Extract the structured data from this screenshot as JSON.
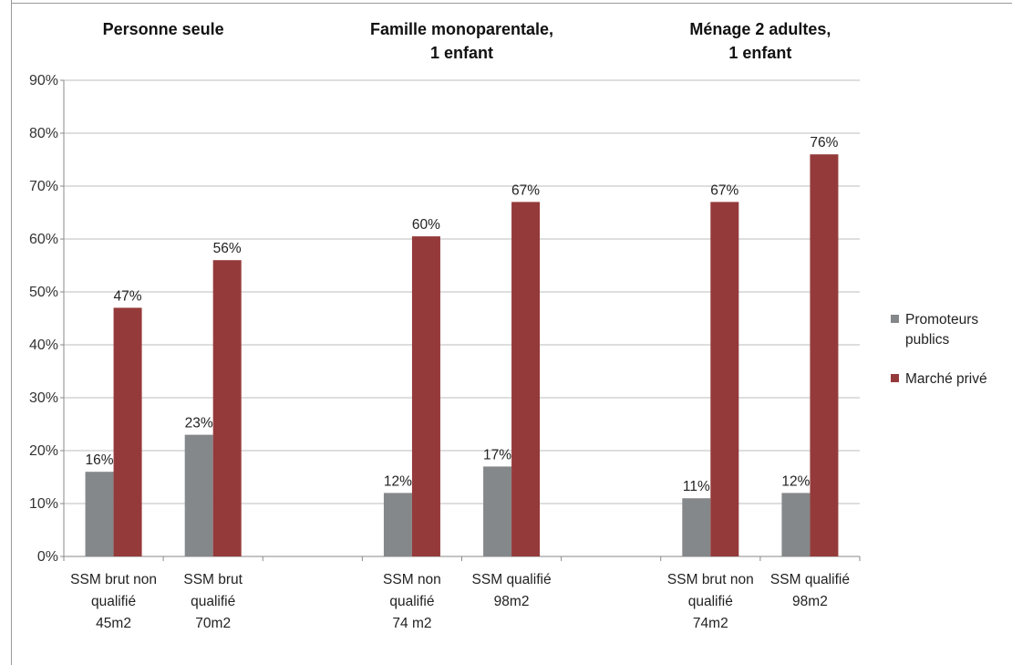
{
  "chart_data": {
    "type": "bar",
    "ylim": [
      0,
      0.9
    ],
    "y_ticks": [
      "0%",
      "10%",
      "20%",
      "30%",
      "40%",
      "50%",
      "60%",
      "70%",
      "80%",
      "90%"
    ],
    "grid": true,
    "legend_position": "right",
    "colors": {
      "Promoteurs publics": "#85888a",
      "Marché privé": "#953a3a"
    },
    "groups": [
      {
        "title": [
          "Personne seule"
        ],
        "categories": [
          0,
          1
        ]
      },
      {
        "title": [
          "Famille monoparentale,",
          "1 enfant"
        ],
        "categories": [
          3,
          4
        ]
      },
      {
        "title": [
          "Ménage 2 adultes,",
          "1 enfant"
        ],
        "categories": [
          6,
          7
        ]
      }
    ],
    "categories": [
      [
        "SSM brut non",
        "qualifié",
        "45m2"
      ],
      [
        "SSM brut",
        "qualifié",
        "70m2"
      ],
      [
        "",
        "",
        ""
      ],
      [
        "SSM non",
        "qualifié",
        "74 m2"
      ],
      [
        "SSM qualifié",
        "98m2",
        ""
      ],
      [
        "",
        "",
        ""
      ],
      [
        "SSM brut non",
        "qualifié",
        "74m2"
      ],
      [
        "SSM qualifié",
        "98m2",
        ""
      ]
    ],
    "series": [
      {
        "name": [
          "Promoteurs",
          "publics"
        ],
        "values": [
          0.16,
          0.23,
          null,
          0.12,
          0.17,
          null,
          0.11,
          0.12
        ],
        "labels": [
          "16%",
          "23%",
          "",
          "12%",
          "17%",
          "",
          "11%",
          "12%"
        ]
      },
      {
        "name": [
          "Marché privé"
        ],
        "values": [
          0.47,
          0.56,
          null,
          0.605,
          0.67,
          null,
          0.67,
          0.76
        ],
        "labels": [
          "47%",
          "56%",
          "",
          "60%",
          "67%",
          "",
          "67%",
          "76%"
        ]
      }
    ]
  }
}
